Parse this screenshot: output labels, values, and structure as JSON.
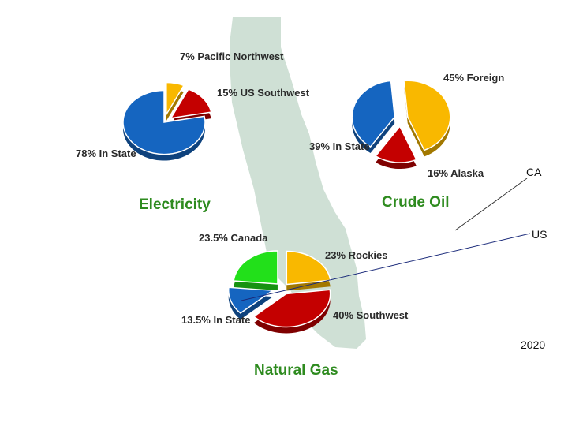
{
  "colors": {
    "blue": "#1565c0",
    "red": "#c40000",
    "yellow": "#f9b800",
    "green": "#22e01a",
    "map": "#cfe0d5",
    "title": "#2e8b1f"
  },
  "side_labels": {
    "ca": "CA",
    "us": "US",
    "year": "2020"
  },
  "chart_data": [
    {
      "type": "pie",
      "title": "Electricity",
      "slices": [
        {
          "label": "78% In State",
          "value": 78,
          "color": "blue"
        },
        {
          "label": "7% Pacific Northwest",
          "value": 7,
          "color": "yellow"
        },
        {
          "label": "15% US Southwest",
          "value": 15,
          "color": "red"
        }
      ]
    },
    {
      "type": "pie",
      "title": "Crude Oil",
      "slices": [
        {
          "label": "45% Foreign",
          "value": 45,
          "color": "yellow"
        },
        {
          "label": "16% Alaska",
          "value": 16,
          "color": "red"
        },
        {
          "label": "39% In State",
          "value": 39,
          "color": "blue"
        }
      ]
    },
    {
      "type": "pie",
      "title": "Natural Gas",
      "slices": [
        {
          "label": "23% Rockies",
          "value": 23,
          "color": "yellow"
        },
        {
          "label": "40% Southwest",
          "value": 40,
          "color": "red"
        },
        {
          "label": "13.5% In State",
          "value": 13.5,
          "color": "blue"
        },
        {
          "label": "23.5% Canada",
          "value": 23.5,
          "color": "green"
        }
      ]
    }
  ]
}
